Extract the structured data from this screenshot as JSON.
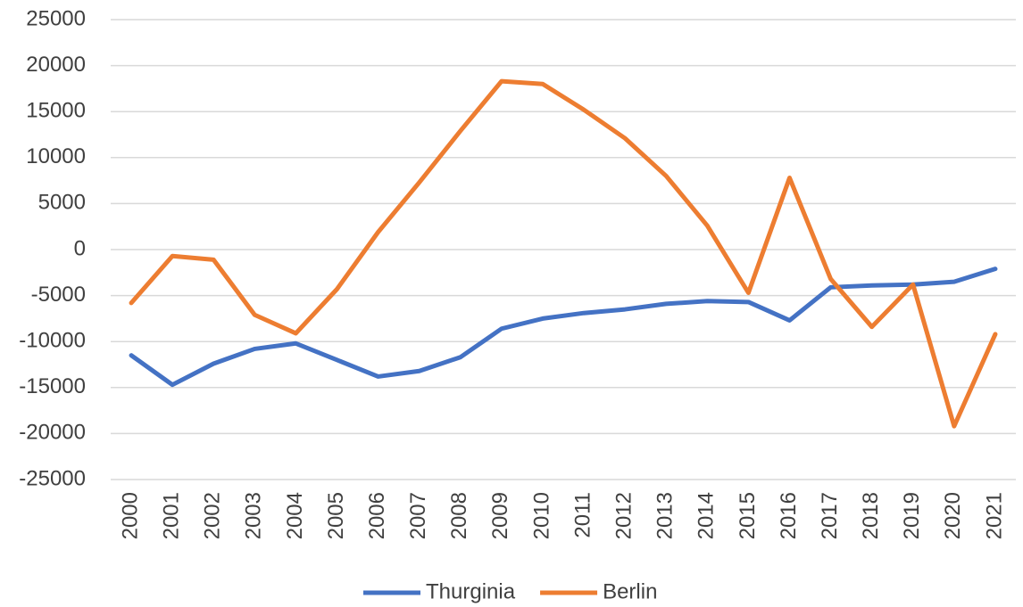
{
  "chart_data": {
    "type": "line",
    "categories": [
      "2000",
      "2001",
      "2002",
      "2003",
      "2004",
      "2005",
      "2006",
      "2007",
      "2008",
      "2009",
      "2010",
      "2011",
      "2012",
      "2013",
      "2014",
      "2015",
      "2016",
      "2017",
      "2018",
      "2019",
      "2020",
      "2021"
    ],
    "series": [
      {
        "name": "Thurginia",
        "color": "#4472c4",
        "values": [
          -11500,
          -14700,
          -12400,
          -10800,
          -10200,
          -12000,
          -13800,
          -13200,
          -11700,
          -8600,
          -7500,
          -6900,
          -6500,
          -5900,
          -5600,
          -5700,
          -7700,
          -4100,
          -3900,
          -3800,
          -3500,
          -2100
        ]
      },
      {
        "name": "Berlin",
        "color": "#ed7d31",
        "values": [
          -5800,
          -700,
          -1100,
          -7100,
          -9100,
          -4300,
          1900,
          7300,
          12900,
          18300,
          18000,
          15200,
          12100,
          8000,
          2600,
          -4700,
          7800,
          -3200,
          -8400,
          -3800,
          -19200,
          -9200
        ]
      }
    ],
    "ylim": [
      -25000,
      25000
    ],
    "yticks": [
      -25000,
      -20000,
      -15000,
      -10000,
      -5000,
      0,
      5000,
      10000,
      15000,
      20000,
      25000
    ],
    "grid": true,
    "legend": "bottom"
  }
}
